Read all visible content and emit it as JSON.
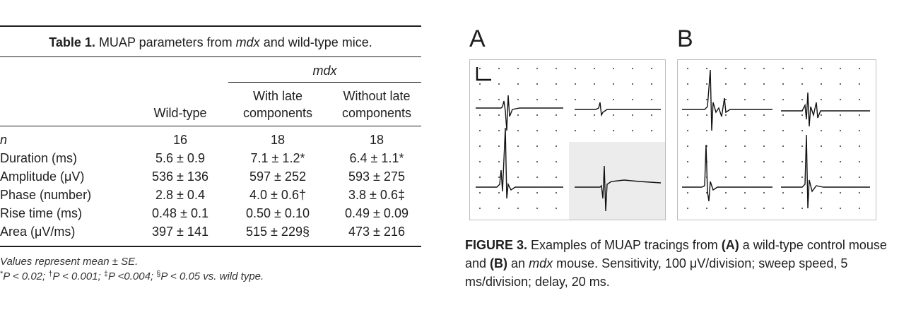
{
  "table": {
    "caption_label": "Table 1.",
    "caption_text_1": " MUAP parameters from ",
    "caption_text_italic": "mdx",
    "caption_text_2": " and wild-type mice.",
    "group_header": "mdx",
    "col_wild": "Wild-type",
    "col_late_1": "With late",
    "col_late_2": "components",
    "col_nolate_1": "Without late",
    "col_nolate_2": "components",
    "rows": [
      {
        "label": "n",
        "wild": "16",
        "late": "18",
        "nolate": "18"
      },
      {
        "label": "Duration (ms)",
        "wild": "5.6 ± 0.9",
        "late": "7.1 ± 1.2*",
        "nolate": "6.4 ± 1.1*"
      },
      {
        "label": "Amplitude (μV)",
        "wild": "536 ± 136",
        "late": "597 ± 252",
        "nolate": "593 ± 275"
      },
      {
        "label": "Phase (number)",
        "wild": "2.8 ± 0.4",
        "late": "4.0 ± 0.6†",
        "nolate": "3.8 ± 0.6‡"
      },
      {
        "label": "Rise time (ms)",
        "wild": "0.48 ± 0.1",
        "late": "0.50 ± 0.10",
        "nolate": "0.49 ± 0.09"
      },
      {
        "label": "Area (μV/ms)",
        "wild": "397 ± 141",
        "late": "515 ± 229§",
        "nolate": "473 ± 216"
      }
    ],
    "note_1": "Values represent mean ± SE.",
    "note_2": "*P < 0.02; †P < 0.001; ‡P <0.004; §P < 0.05 vs. wild type."
  },
  "figure": {
    "panel_a": "A",
    "panel_b": "B",
    "caption_label": "FIGURE 3.",
    "caption_1": " Examples of MUAP tracings from ",
    "caption_a": "(A)",
    "caption_2": " a wild-type control mouse and ",
    "caption_b": "(B)",
    "caption_3": " an ",
    "caption_mdx": "mdx",
    "caption_4": " mouse. Sensitivity, 100 μV/division; sweep speed, 5 ms/division; delay, 20 ms."
  }
}
